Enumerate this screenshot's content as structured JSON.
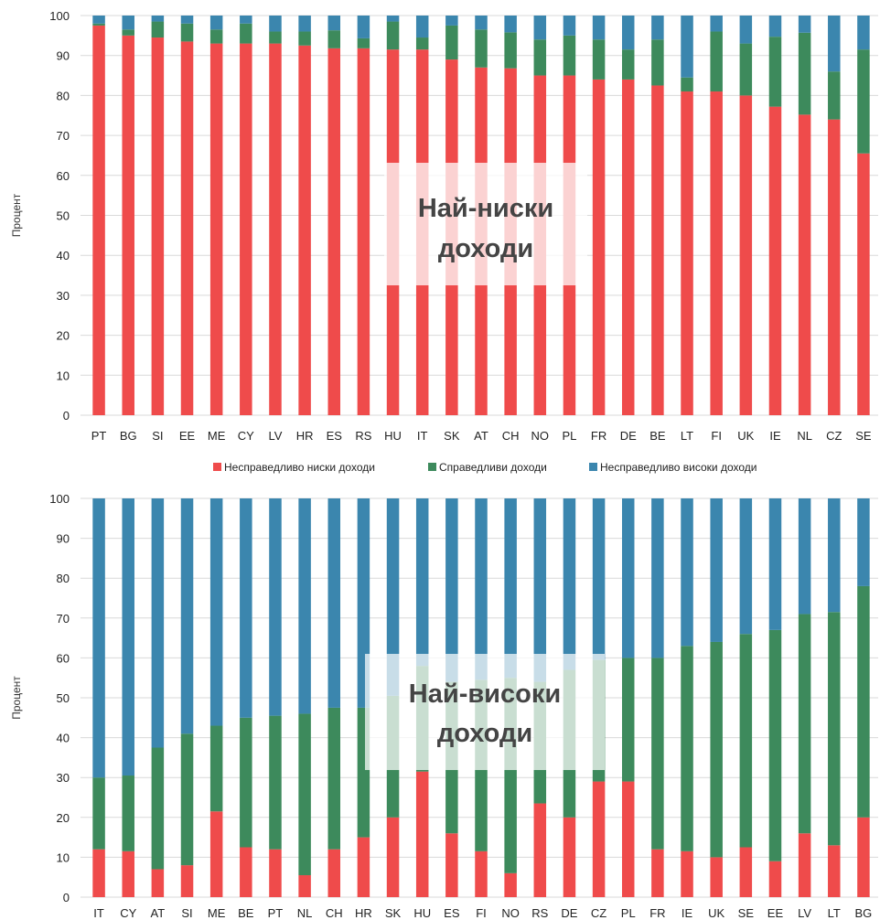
{
  "legend": {
    "items": [
      {
        "label": "Несправедливо ниски доходи",
        "color": "#ef4b4b"
      },
      {
        "label": "Справедливи доходи",
        "color": "#3d8a5c"
      },
      {
        "label": "Несправедливо високи доходи",
        "color": "#3b86ae"
      }
    ]
  },
  "chart_data": [
    {
      "type": "bar",
      "stacked": true,
      "ylabel": "Процент",
      "ylim": [
        0,
        100
      ],
      "yticks": [
        0,
        10,
        20,
        30,
        40,
        50,
        60,
        70,
        80,
        90,
        100
      ],
      "overlay_label": [
        "Най-ниски",
        "доходи"
      ],
      "categories": [
        "PT",
        "BG",
        "SI",
        "EE",
        "ME",
        "CY",
        "LV",
        "HR",
        "ES",
        "RS",
        "HU",
        "IT",
        "SK",
        "AT",
        "CH",
        "NO",
        "PL",
        "FR",
        "DE",
        "BE",
        "LT",
        "FI",
        "UK",
        "IE",
        "NL",
        "CZ",
        "SE"
      ],
      "series": [
        {
          "name": "Несправедливо ниски доходи",
          "values": [
            97.5,
            95,
            94.5,
            93.5,
            93,
            93,
            93,
            92.5,
            91.8,
            91.8,
            91.5,
            91.5,
            89,
            87,
            86.8,
            85,
            85,
            84,
            84,
            82.5,
            81,
            81,
            80,
            77.2,
            75.2,
            74,
            65.5
          ]
        },
        {
          "name": "Справедливи доходи",
          "values": [
            0.5,
            1.5,
            4,
            4.5,
            3.5,
            5,
            3,
            3.5,
            4.5,
            2.5,
            7,
            3,
            8.5,
            9.5,
            9,
            9,
            10,
            10,
            7.5,
            11.5,
            3.5,
            15,
            13,
            17.5,
            20.5,
            12,
            26
          ]
        },
        {
          "name": "Несправедливо високи доходи",
          "values": [
            2,
            3.5,
            1.5,
            2,
            3.5,
            2,
            4,
            4,
            3.7,
            5.7,
            1.5,
            5.5,
            2.5,
            3.5,
            4.2,
            6,
            5,
            6,
            8.5,
            6,
            15.5,
            4,
            7,
            5.3,
            4.3,
            14,
            8.5
          ]
        }
      ]
    },
    {
      "type": "bar",
      "stacked": true,
      "ylabel": "Процент",
      "ylim": [
        0,
        100
      ],
      "yticks": [
        0,
        10,
        20,
        30,
        40,
        50,
        60,
        70,
        80,
        90,
        100
      ],
      "overlay_label": [
        "Най-високи",
        "доходи"
      ],
      "categories": [
        "IT",
        "CY",
        "AT",
        "SI",
        "ME",
        "BE",
        "PT",
        "NL",
        "CH",
        "HR",
        "SK",
        "HU",
        "ES",
        "FI",
        "NO",
        "RS",
        "DE",
        "CZ",
        "PL",
        "FR",
        "IE",
        "UK",
        "SE",
        "EE",
        "LV",
        "LT",
        "BG"
      ],
      "series": [
        {
          "name": "Несправедливо ниски доходи",
          "values": [
            12,
            11.5,
            7,
            8,
            21.5,
            12.5,
            12,
            5.5,
            12,
            15,
            20,
            31.5,
            16,
            11.5,
            6,
            23.5,
            20,
            29,
            29,
            12,
            11.5,
            10,
            12.5,
            9,
            16,
            13,
            20
          ]
        },
        {
          "name": "Справедливи доходи",
          "values": [
            18,
            19,
            30.5,
            33,
            21.5,
            32.5,
            33.5,
            40.5,
            35.5,
            32.5,
            30.5,
            26.5,
            38,
            43,
            49,
            30.5,
            37,
            30.5,
            31,
            48,
            51.5,
            54,
            53.5,
            58,
            55,
            58.5,
            58
          ]
        },
        {
          "name": "Несправедливо високи доходи",
          "values": [
            70,
            69.5,
            62.5,
            59,
            57,
            55,
            54.5,
            54,
            52.5,
            52.5,
            49.5,
            42,
            46,
            45.5,
            45,
            46,
            43,
            40.5,
            40,
            40,
            37,
            36,
            34,
            33,
            29,
            28.5,
            22
          ]
        }
      ]
    }
  ]
}
